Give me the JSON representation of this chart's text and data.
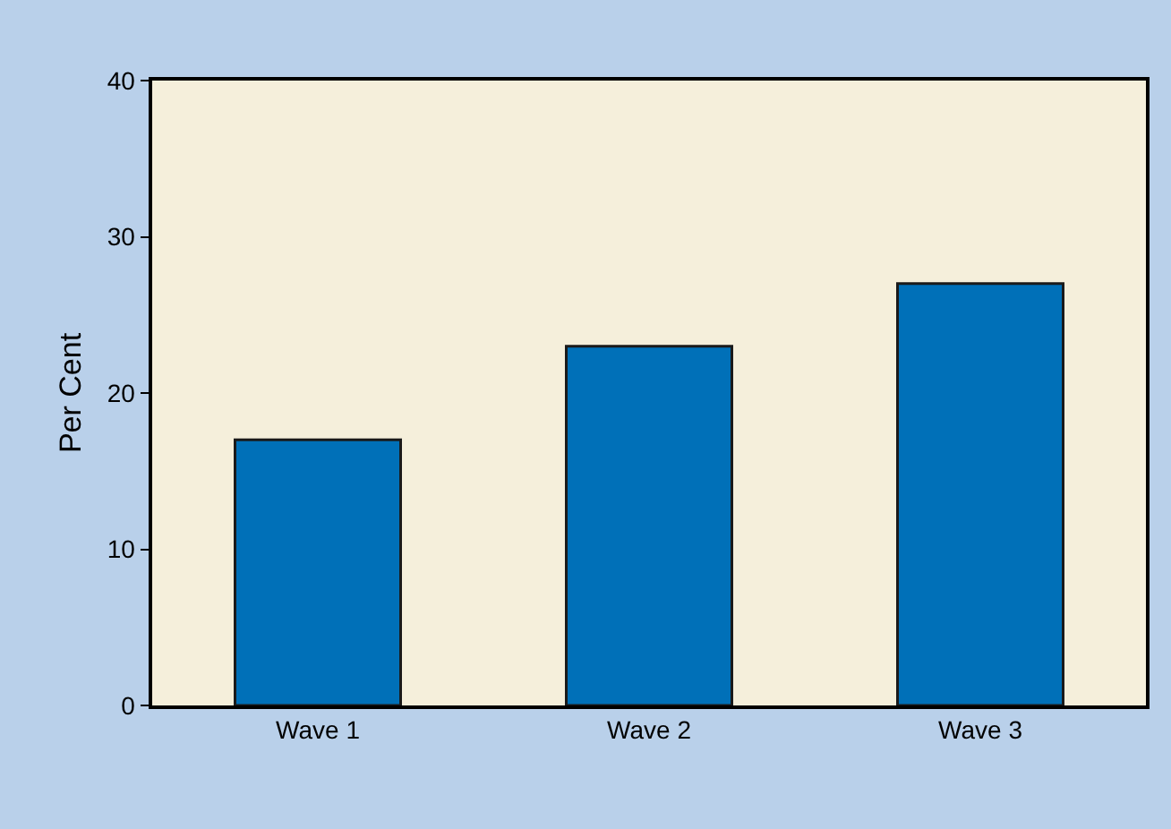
{
  "chart_data": {
    "type": "bar",
    "ylabel": "Per Cent",
    "categories": [
      "Wave 1",
      "Wave 2",
      "Wave 3"
    ],
    "values": [
      17,
      23,
      27
    ],
    "color": "#0070b8",
    "ylim": [
      0,
      40
    ],
    "yticks": [
      0,
      10,
      20,
      30,
      40
    ],
    "grid": false
  }
}
